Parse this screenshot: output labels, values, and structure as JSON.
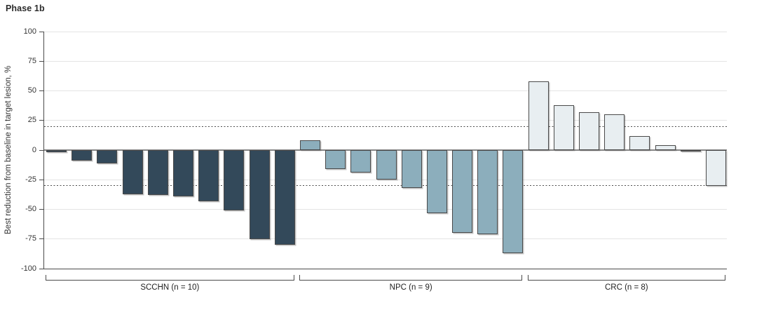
{
  "title": "Phase 1b",
  "chart_data": {
    "type": "bar",
    "subtype": "waterfall",
    "title": "Phase 1b",
    "xlabel": "",
    "ylabel": "Best reduction from baseline in target lesion, %",
    "ylim": [
      -100,
      100
    ],
    "yticks": [
      100,
      75,
      50,
      25,
      0,
      -25,
      -50,
      -75,
      -100
    ],
    "reference_lines": [
      20,
      -30
    ],
    "reference_line_style": "dashed",
    "grid": "horizontal",
    "legend": "none",
    "bar_outline_color": "#4a4a4a",
    "zero_line_color": "#868686",
    "gridline_color": "#e4e4e4",
    "groups": [
      {
        "label": "SCCHN (n = 10)",
        "color": "#33495a",
        "values": [
          -2,
          -9,
          -11,
          -37,
          -38,
          -39,
          -43,
          -51,
          -75,
          -80
        ]
      },
      {
        "label": "NPC (n = 9)",
        "color": "#8caebc",
        "values": [
          8,
          -16,
          -19,
          -25,
          -32,
          -53,
          -70,
          -71,
          -87
        ]
      },
      {
        "label": "CRC (n = 8)",
        "color": "#e8eef1",
        "values": [
          58,
          38,
          32,
          30,
          12,
          4,
          -1,
          -30
        ]
      }
    ]
  }
}
